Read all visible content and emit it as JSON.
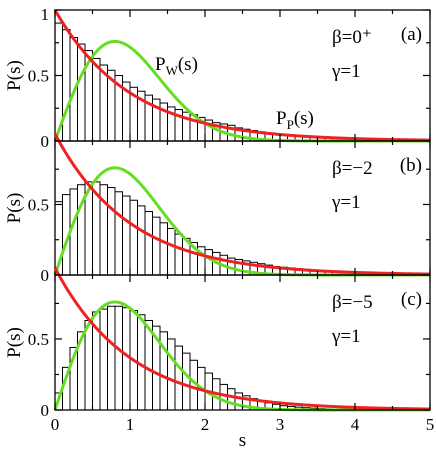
{
  "chart_data": [
    {
      "type": "bar",
      "panel_label": "(a)",
      "annotation_lines": [
        "β=0⁺",
        "γ=1"
      ],
      "curve_labels": [
        {
          "main": "P",
          "sub": "W",
          "suffix": "(s)",
          "curve": "wigner"
        },
        {
          "main": "P",
          "sub": "P",
          "suffix": "(s)",
          "curve": "poisson"
        }
      ],
      "xlabel": "",
      "ylabel": "P(s)",
      "xlim": [
        0,
        5
      ],
      "ylim": [
        0,
        1
      ],
      "yticks": [
        0,
        0.5,
        1
      ],
      "yticklabels": [
        "0",
        "0.5",
        "1"
      ],
      "bin_width": 0.1,
      "bar_values": [
        0.9,
        0.85,
        0.79,
        0.74,
        0.69,
        0.63,
        0.58,
        0.54,
        0.5,
        0.45,
        0.41,
        0.38,
        0.35,
        0.32,
        0.29,
        0.26,
        0.24,
        0.22,
        0.2,
        0.18,
        0.16,
        0.14,
        0.13,
        0.12,
        0.1,
        0.09,
        0.08,
        0.07,
        0.06,
        0.05,
        0.045,
        0.04,
        0.035,
        0.03,
        0.028,
        0.025,
        0.022,
        0.02,
        0.017,
        0.015,
        0.013,
        0.012,
        0.011,
        0.01,
        0.009,
        0.008,
        0.007,
        0.006,
        0.005,
        0.004
      ]
    },
    {
      "type": "bar",
      "panel_label": "(b)",
      "annotation_lines": [
        "β=−2",
        "γ=1"
      ],
      "curve_labels": [],
      "xlabel": "",
      "ylabel": "P(s)",
      "xlim": [
        0,
        5
      ],
      "ylim": [
        0,
        0.95
      ],
      "yticks": [
        0,
        0.5
      ],
      "yticklabels": [
        "0",
        "0.5"
      ],
      "bin_width": 0.1,
      "bar_values": [
        0.52,
        0.57,
        0.61,
        0.64,
        0.66,
        0.66,
        0.64,
        0.62,
        0.59,
        0.56,
        0.53,
        0.49,
        0.45,
        0.41,
        0.37,
        0.33,
        0.29,
        0.26,
        0.23,
        0.2,
        0.18,
        0.16,
        0.14,
        0.12,
        0.11,
        0.1,
        0.09,
        0.08,
        0.07,
        0.06,
        0.055,
        0.05,
        0.045,
        0.04,
        0.035,
        0.03,
        0.027,
        0.024,
        0.021,
        0.019,
        0.017,
        0.015,
        0.013,
        0.011,
        0.01,
        0.009,
        0.008,
        0.007,
        0.006,
        0.005
      ]
    },
    {
      "type": "bar",
      "panel_label": "(c)",
      "annotation_lines": [
        "β=−5",
        "γ=1"
      ],
      "curve_labels": [],
      "xlabel": "s",
      "ylabel": "P(s)",
      "xlim": [
        0,
        5
      ],
      "ylim": [
        0,
        0.95
      ],
      "yticks": [
        0,
        0.5
      ],
      "yticklabels": [
        "0",
        "0.5"
      ],
      "xticks": [
        0,
        1,
        2,
        3,
        4,
        5
      ],
      "xticklabels": [
        "0",
        "1",
        "2",
        "3",
        "4",
        "5"
      ],
      "bin_width": 0.1,
      "bar_values": [
        0.12,
        0.3,
        0.44,
        0.55,
        0.63,
        0.69,
        0.71,
        0.73,
        0.73,
        0.72,
        0.7,
        0.67,
        0.63,
        0.59,
        0.55,
        0.5,
        0.45,
        0.4,
        0.35,
        0.3,
        0.26,
        0.22,
        0.18,
        0.15,
        0.12,
        0.1,
        0.08,
        0.06,
        0.05,
        0.04,
        0.03,
        0.025,
        0.02,
        0.016,
        0.013,
        0.01,
        0.008,
        0.006,
        0.005,
        0.004,
        0.003,
        0.003,
        0.002,
        0.002,
        0.002,
        0.001,
        0.001,
        0.001,
        0.001,
        0.001
      ]
    }
  ],
  "colors": {
    "poisson": "#ee2222",
    "wigner": "#66dd22"
  }
}
